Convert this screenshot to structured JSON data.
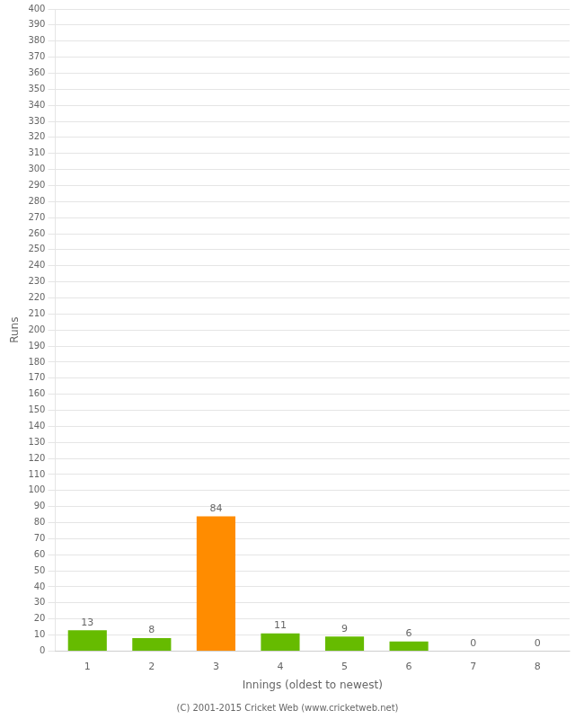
{
  "chart_data": {
    "type": "bar",
    "xlabel": "Innings (oldest to newest)",
    "ylabel": "Runs",
    "categories": [
      "1",
      "2",
      "3",
      "4",
      "5",
      "6",
      "7",
      "8"
    ],
    "values": [
      13,
      8,
      84,
      11,
      9,
      6,
      0,
      0
    ],
    "colors": [
      "#66bb00",
      "#66bb00",
      "#ff8c00",
      "#66bb00",
      "#66bb00",
      "#66bb00",
      "#66bb00",
      "#66bb00"
    ],
    "ylim": [
      0,
      400
    ],
    "yticks": [
      0,
      10,
      20,
      30,
      40,
      50,
      60,
      70,
      80,
      90,
      100,
      110,
      120,
      130,
      140,
      150,
      160,
      170,
      180,
      190,
      200,
      210,
      220,
      230,
      240,
      250,
      260,
      270,
      280,
      290,
      300,
      310,
      320,
      330,
      340,
      350,
      360,
      370,
      380,
      390,
      400
    ],
    "grid": true,
    "data_labels": true,
    "annotations": [
      "(C) 2001-2015 Cricket Web (www.cricketweb.net)"
    ]
  }
}
